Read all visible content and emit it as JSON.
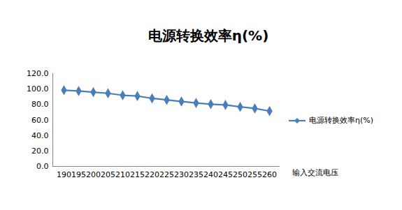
{
  "chart_data": {
    "type": "line",
    "title": "电源转换效率η(%)",
    "x_label": "输入交流电压",
    "categories": [
      "190",
      "195",
      "200",
      "205",
      "210",
      "215",
      "220",
      "225",
      "230",
      "235",
      "240",
      "245",
      "250",
      "255",
      "260"
    ],
    "series": [
      {
        "name": "电源转换效率η(%)",
        "color": "#4a7ebb",
        "marker": "diamond",
        "values": [
          98.5,
          97.5,
          96.0,
          94.5,
          92.0,
          91.0,
          88.0,
          86.0,
          84.0,
          82.0,
          80.5,
          79.5,
          77.0,
          75.0,
          71.5
        ]
      }
    ],
    "ylim": [
      0,
      120
    ],
    "yticks": [
      {
        "value": 0,
        "label": "0.0"
      },
      {
        "value": 20,
        "label": "20.0"
      },
      {
        "value": 40,
        "label": "40.0"
      },
      {
        "value": 60,
        "label": "60.0"
      },
      {
        "value": 80,
        "label": "80.0"
      },
      {
        "value": 100,
        "label": "100.0"
      },
      {
        "value": 120,
        "label": "120.0"
      }
    ],
    "grid": false,
    "legend": "right"
  }
}
